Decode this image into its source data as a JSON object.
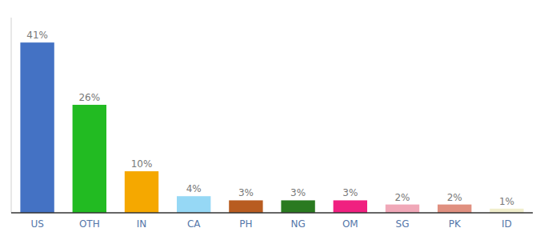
{
  "chart_data": {
    "type": "bar",
    "categories": [
      "US",
      "OTH",
      "IN",
      "CA",
      "PH",
      "NG",
      "OM",
      "SG",
      "PK",
      "ID"
    ],
    "values": [
      41,
      26,
      10,
      4,
      3,
      3,
      3,
      2,
      2,
      1
    ],
    "value_labels": [
      "41%",
      "26%",
      "10%",
      "4%",
      "3%",
      "3%",
      "3%",
      "2%",
      "2%",
      "1%"
    ],
    "colors": [
      "#4472c4",
      "#22bb22",
      "#f5a800",
      "#96d8f5",
      "#b85c20",
      "#2a7a20",
      "#f02080",
      "#f0a8b8",
      "#e09080",
      "#f0eecc"
    ],
    "ylim": [
      0,
      47
    ],
    "data_labels": true,
    "grid": false,
    "tick_labels": "x"
  }
}
